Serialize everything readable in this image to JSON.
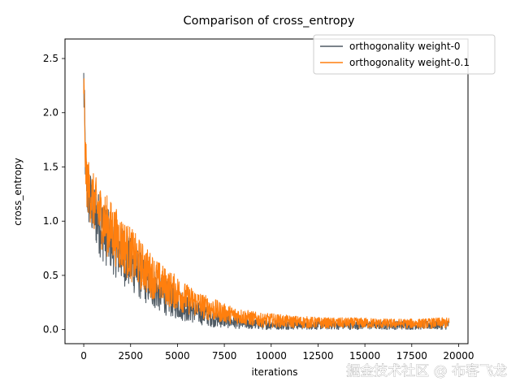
{
  "chart_data": {
    "type": "line",
    "title": "Comparison of cross_entropy",
    "xlabel": "iterations",
    "ylabel": "cross_entropy",
    "xlim": [
      -1000,
      20500
    ],
    "ylim": [
      -0.13,
      2.68
    ],
    "xticks": [
      0,
      2500,
      5000,
      7500,
      10000,
      12500,
      15000,
      17500,
      20000
    ],
    "yticks": [
      0.0,
      0.5,
      1.0,
      1.5,
      2.0,
      2.5
    ],
    "grid": false,
    "legend_position": "top-right",
    "series": [
      {
        "name": "orthogonality weight-0",
        "color": "#4f5a63",
        "x": [
          0,
          100,
          200,
          500,
          1000,
          1500,
          2000,
          2500,
          3000,
          3500,
          4000,
          4500,
          5000,
          5500,
          6000,
          6500,
          7000,
          7500,
          8000,
          8500,
          9000,
          9500,
          10000,
          11000,
          12000,
          13000,
          14000,
          15000,
          16000,
          17000,
          18000,
          19000,
          19500
        ],
        "lower": [
          1.95,
          1.2,
          0.95,
          0.8,
          0.62,
          0.52,
          0.42,
          0.35,
          0.27,
          0.21,
          0.16,
          0.12,
          0.09,
          0.07,
          0.05,
          0.035,
          0.02,
          0.015,
          0.01,
          0.005,
          0.0,
          0.0,
          0.0,
          0.0,
          0.0,
          0.0,
          0.0,
          0.0,
          0.0,
          0.0,
          0.0,
          0.0,
          0.0
        ],
        "upper": [
          2.56,
          1.72,
          1.55,
          1.38,
          1.2,
          1.05,
          0.95,
          0.85,
          0.72,
          0.62,
          0.52,
          0.44,
          0.38,
          0.32,
          0.26,
          0.22,
          0.18,
          0.15,
          0.12,
          0.1,
          0.1,
          0.09,
          0.09,
          0.09,
          0.08,
          0.08,
          0.08,
          0.08,
          0.08,
          0.08,
          0.08,
          0.08,
          0.09
        ]
      },
      {
        "name": "orthogonality weight-0.1",
        "color": "#ff7f0e",
        "x": [
          0,
          100,
          200,
          500,
          1000,
          1500,
          2000,
          2500,
          3000,
          3500,
          4000,
          4500,
          5000,
          5500,
          6000,
          6500,
          7000,
          7500,
          8000,
          8500,
          9000,
          9500,
          10000,
          11000,
          12000,
          13000,
          14000,
          15000,
          16000,
          17000,
          18000,
          19000,
          19500
        ],
        "lower": [
          2.0,
          1.25,
          1.05,
          0.9,
          0.72,
          0.62,
          0.52,
          0.44,
          0.36,
          0.3,
          0.25,
          0.21,
          0.17,
          0.14,
          0.11,
          0.09,
          0.07,
          0.06,
          0.05,
          0.04,
          0.03,
          0.02,
          0.02,
          0.015,
          0.01,
          0.01,
          0.01,
          0.01,
          0.01,
          0.01,
          0.01,
          0.01,
          0.01
        ],
        "upper": [
          2.52,
          1.75,
          1.6,
          1.45,
          1.3,
          1.18,
          1.05,
          0.95,
          0.83,
          0.73,
          0.63,
          0.55,
          0.5,
          0.42,
          0.37,
          0.32,
          0.28,
          0.24,
          0.21,
          0.19,
          0.17,
          0.15,
          0.15,
          0.13,
          0.12,
          0.11,
          0.11,
          0.11,
          0.1,
          0.1,
          0.1,
          0.11,
          0.11
        ]
      }
    ]
  },
  "watermark": "掘金技术社区 @ 布客飞龙"
}
